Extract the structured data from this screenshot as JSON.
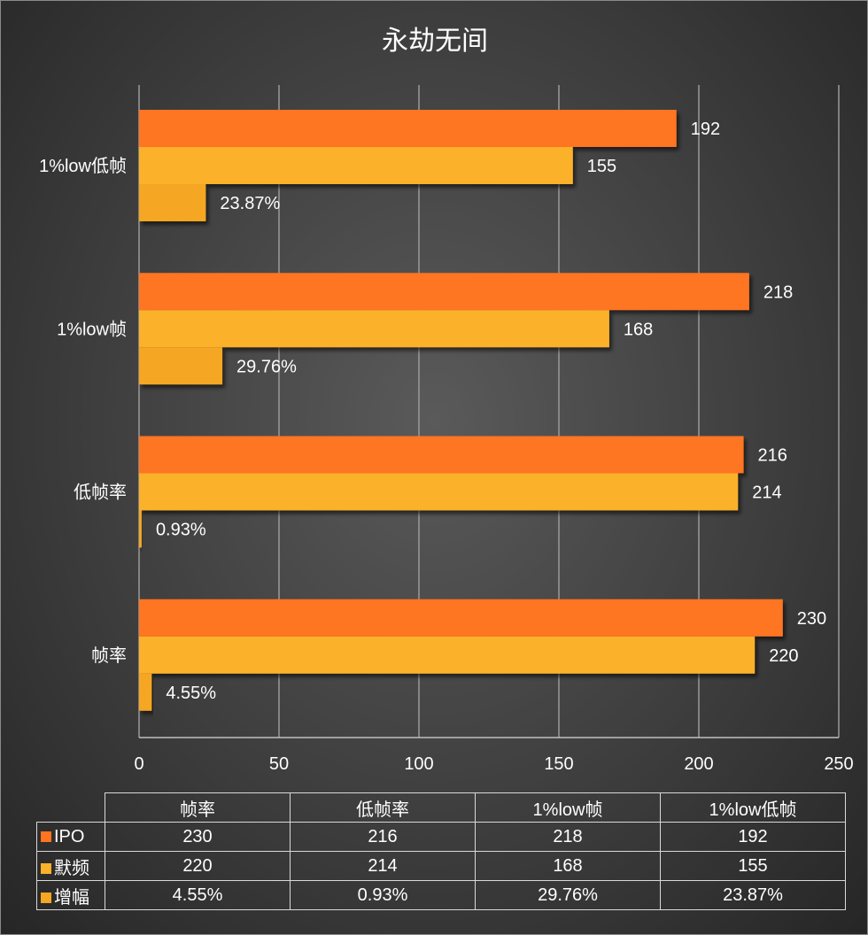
{
  "chart_data": {
    "type": "bar",
    "orientation": "horizontal",
    "title": "永劫无间",
    "categories": [
      "帧率",
      "低帧率",
      "1%low帧",
      "1%low低帧"
    ],
    "series": [
      {
        "name": "IPO",
        "values": [
          230,
          216,
          218,
          192
        ],
        "color": "#fe7420"
      },
      {
        "name": "默频",
        "values": [
          220,
          214,
          168,
          155
        ],
        "color": "#fcb12a"
      },
      {
        "name": "增幅",
        "values": [
          4.55,
          0.93,
          29.76,
          23.87
        ],
        "labels": [
          "4.55%",
          "0.93%",
          "29.76%",
          "23.87%"
        ],
        "color": "#f5a623"
      }
    ],
    "xlim": [
      0,
      250
    ],
    "xticks": [
      0,
      50,
      100,
      150,
      200,
      250
    ],
    "grid": true,
    "legend": "data-table"
  }
}
